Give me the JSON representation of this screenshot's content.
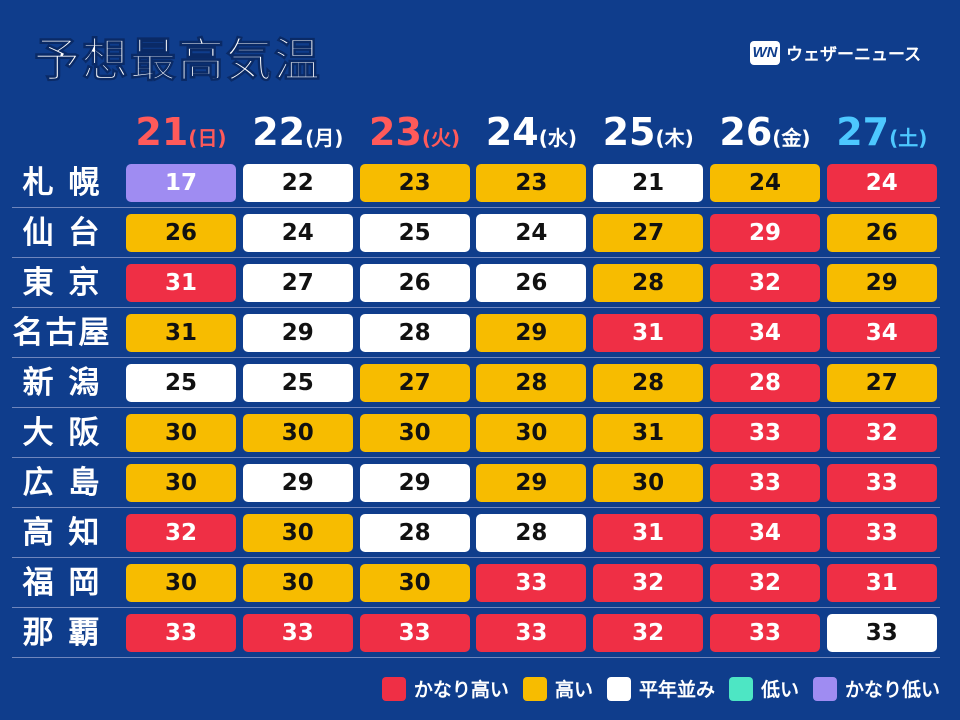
{
  "header": {
    "title": "予想最高気温",
    "brand": "ウェザーニュース",
    "brand_mark": "WN"
  },
  "colors": {
    "background": "#0f3d8c",
    "very_high": "#ef2f45",
    "high": "#f7bc00",
    "normal": "#ffffff",
    "low": "#4de6c4",
    "very_low": "#9f8cf2",
    "sunday": "#ff5a5a",
    "holiday": "#ff5a5a",
    "saturday": "#4dc8ff",
    "weekday": "#ffffff"
  },
  "chart_data": {
    "type": "table",
    "title": "予想最高気温",
    "columns": [
      {
        "day": "21",
        "weekday": "(日)",
        "color": "#ff5a5a"
      },
      {
        "day": "22",
        "weekday": "(月)",
        "color": "#ffffff"
      },
      {
        "day": "23",
        "weekday": "(火)",
        "color": "#ff5a5a"
      },
      {
        "day": "24",
        "weekday": "(水)",
        "color": "#ffffff"
      },
      {
        "day": "25",
        "weekday": "(木)",
        "color": "#ffffff"
      },
      {
        "day": "26",
        "weekday": "(金)",
        "color": "#ffffff"
      },
      {
        "day": "27",
        "weekday": "(土)",
        "color": "#4dc8ff"
      }
    ],
    "rows": [
      {
        "city": "札 幌",
        "values": [
          "17",
          "22",
          "23",
          "23",
          "21",
          "24",
          "24"
        ],
        "categories": [
          "very_low",
          "normal",
          "high",
          "high",
          "normal",
          "high",
          "very_high"
        ]
      },
      {
        "city": "仙 台",
        "values": [
          "26",
          "24",
          "25",
          "24",
          "27",
          "29",
          "26"
        ],
        "categories": [
          "high",
          "normal",
          "normal",
          "normal",
          "high",
          "very_high",
          "high"
        ]
      },
      {
        "city": "東 京",
        "values": [
          "31",
          "27",
          "26",
          "26",
          "28",
          "32",
          "29"
        ],
        "categories": [
          "very_high",
          "normal",
          "normal",
          "normal",
          "high",
          "very_high",
          "high"
        ]
      },
      {
        "city": "名古屋",
        "values": [
          "31",
          "29",
          "28",
          "29",
          "31",
          "34",
          "34"
        ],
        "categories": [
          "high",
          "normal",
          "normal",
          "high",
          "very_high",
          "very_high",
          "very_high"
        ]
      },
      {
        "city": "新 潟",
        "values": [
          "25",
          "25",
          "27",
          "28",
          "28",
          "28",
          "27"
        ],
        "categories": [
          "normal",
          "normal",
          "high",
          "high",
          "high",
          "very_high",
          "high"
        ]
      },
      {
        "city": "大 阪",
        "values": [
          "30",
          "30",
          "30",
          "30",
          "31",
          "33",
          "32"
        ],
        "categories": [
          "high",
          "high",
          "high",
          "high",
          "high",
          "very_high",
          "very_high"
        ]
      },
      {
        "city": "広 島",
        "values": [
          "30",
          "29",
          "29",
          "29",
          "30",
          "33",
          "33"
        ],
        "categories": [
          "high",
          "normal",
          "normal",
          "high",
          "high",
          "very_high",
          "very_high"
        ]
      },
      {
        "city": "高 知",
        "values": [
          "32",
          "30",
          "28",
          "28",
          "31",
          "34",
          "33"
        ],
        "categories": [
          "very_high",
          "high",
          "normal",
          "normal",
          "very_high",
          "very_high",
          "very_high"
        ]
      },
      {
        "city": "福 岡",
        "values": [
          "30",
          "30",
          "30",
          "33",
          "32",
          "32",
          "31"
        ],
        "categories": [
          "high",
          "high",
          "high",
          "very_high",
          "very_high",
          "very_high",
          "very_high"
        ]
      },
      {
        "city": "那 覇",
        "values": [
          "33",
          "33",
          "33",
          "33",
          "32",
          "33",
          "33"
        ],
        "categories": [
          "very_high",
          "very_high",
          "very_high",
          "very_high",
          "very_high",
          "very_high",
          "normal"
        ]
      }
    ],
    "legend": [
      {
        "key": "very_high",
        "label": "かなり高い"
      },
      {
        "key": "high",
        "label": "高い"
      },
      {
        "key": "normal",
        "label": "平年並み"
      },
      {
        "key": "low",
        "label": "低い"
      },
      {
        "key": "very_low",
        "label": "かなり低い"
      }
    ]
  }
}
